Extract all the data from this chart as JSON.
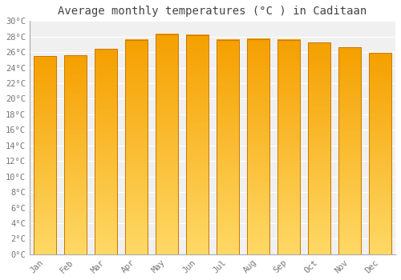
{
  "title": "Average monthly temperatures (°C ) in Caditaan",
  "months": [
    "Jan",
    "Feb",
    "Mar",
    "Apr",
    "May",
    "Jun",
    "Jul",
    "Aug",
    "Sep",
    "Oct",
    "Nov",
    "Dec"
  ],
  "values": [
    25.5,
    25.6,
    26.4,
    27.6,
    28.3,
    28.2,
    27.6,
    27.7,
    27.6,
    27.2,
    26.6,
    25.9
  ],
  "ylim": [
    0,
    30
  ],
  "yticks": [
    0,
    2,
    4,
    6,
    8,
    10,
    12,
    14,
    16,
    18,
    20,
    22,
    24,
    26,
    28,
    30
  ],
  "bar_color_dark": "#F5A000",
  "bar_color_light": "#FFD966",
  "bar_edge_color": "#C87800",
  "background_color": "#ffffff",
  "plot_bg_color": "#f0f0f0",
  "grid_color": "#ffffff",
  "title_fontsize": 10,
  "tick_fontsize": 7.5,
  "title_color": "#444444",
  "tick_color": "#777777",
  "bar_width": 0.75
}
